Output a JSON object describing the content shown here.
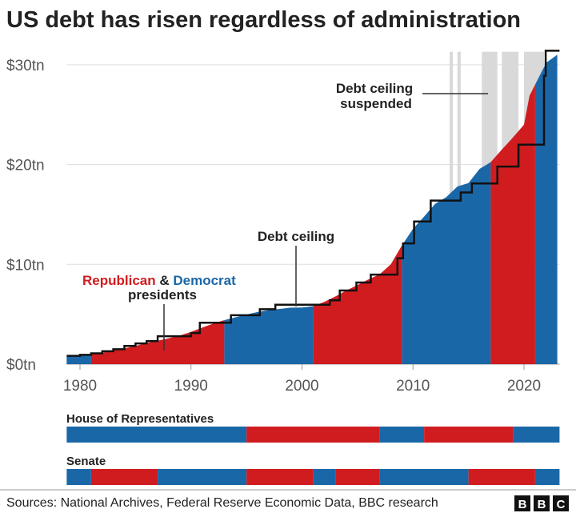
{
  "chart_data": {
    "type": "area",
    "title": "US debt has risen regardless of administration",
    "y_ticks": [
      "$0tn",
      "$10tn",
      "$20tn",
      "$30tn"
    ],
    "y_tick_values": [
      0,
      10,
      20,
      30
    ],
    "x_ticks": [
      "1980",
      "1990",
      "2000",
      "2010",
      "2020"
    ],
    "x_tick_values": [
      1980,
      1990,
      2000,
      2010,
      2020
    ],
    "xlim": [
      1978.8,
      2023.2
    ],
    "ylim": [
      0,
      31.5
    ],
    "grid": true,
    "colors": {
      "republican": "#d01c1f",
      "democrat": "#1a67a8",
      "suspended": "#d9d9d9",
      "ceiling": "#111111"
    },
    "debt_series": {
      "x": [
        1978.8,
        1980,
        1981,
        1982,
        1983,
        1984,
        1985,
        1986,
        1987,
        1988,
        1989,
        1990,
        1991,
        1992,
        1993,
        1994,
        1995,
        1996,
        1997,
        1998,
        1999,
        2000,
        2001,
        2002,
        2003,
        2004,
        2005,
        2006,
        2007,
        2008,
        2009,
        2010,
        2011,
        2012,
        2013,
        2014,
        2015,
        2016,
        2017,
        2018,
        2019,
        2020,
        2020.5,
        2021,
        2022,
        2023
      ],
      "y": [
        0.8,
        0.9,
        1.0,
        1.14,
        1.38,
        1.57,
        1.82,
        2.12,
        2.35,
        2.6,
        2.86,
        3.23,
        3.66,
        4.06,
        4.41,
        4.69,
        4.97,
        5.22,
        5.41,
        5.53,
        5.66,
        5.67,
        5.81,
        6.23,
        6.78,
        7.38,
        7.93,
        8.5,
        9.0,
        10.0,
        11.9,
        13.56,
        14.79,
        16.07,
        16.74,
        17.8,
        18.15,
        19.57,
        20.24,
        21.5,
        22.7,
        24.0,
        26.9,
        28.0,
        30.2,
        31.0
      ]
    },
    "debt_ceiling_steps": {
      "x": [
        1978.8,
        1980,
        1981,
        1982,
        1983,
        1984,
        1985,
        1986,
        1987,
        1990,
        1990.8,
        1993.6,
        1996.2,
        1997.6,
        2002.5,
        2003.4,
        2004.9,
        2006.2,
        2008.6,
        2009.1,
        2010.1,
        2011.6,
        2014.3,
        2015.3,
        2017.6,
        2019.5,
        2021.8,
        2021.95,
        2023.2
      ],
      "y": [
        0.83,
        0.93,
        1.08,
        1.29,
        1.49,
        1.82,
        2.08,
        2.3,
        2.8,
        3.12,
        4.15,
        4.9,
        5.5,
        5.95,
        6.4,
        7.38,
        8.18,
        8.97,
        10.6,
        12.1,
        14.29,
        16.39,
        17.2,
        18.1,
        19.8,
        22.0,
        28.9,
        31.4,
        31.4
      ]
    },
    "presidents": [
      {
        "party": "democrat",
        "from": 1978.8,
        "to": 1981
      },
      {
        "party": "republican",
        "from": 1981,
        "to": 1993
      },
      {
        "party": "democrat",
        "from": 1993,
        "to": 2001
      },
      {
        "party": "republican",
        "from": 2001,
        "to": 2009
      },
      {
        "party": "democrat",
        "from": 2009,
        "to": 2017
      },
      {
        "party": "republican",
        "from": 2017,
        "to": 2021
      },
      {
        "party": "democrat",
        "from": 2021,
        "to": 2023
      }
    ],
    "suspended_periods": [
      [
        2013.3,
        2013.6
      ],
      [
        2014.0,
        2014.3
      ],
      [
        2016.2,
        2017.6
      ],
      [
        2018.0,
        2019.5
      ],
      [
        2020.0,
        2021.8
      ]
    ],
    "house": [
      {
        "party": "democrat",
        "from": 1978.8,
        "to": 1995
      },
      {
        "party": "republican",
        "from": 1995,
        "to": 2007
      },
      {
        "party": "democrat",
        "from": 2007,
        "to": 2011
      },
      {
        "party": "republican",
        "from": 2011,
        "to": 2019
      },
      {
        "party": "democrat",
        "from": 2019,
        "to": 2023.2
      }
    ],
    "senate": [
      {
        "party": "democrat",
        "from": 1978.8,
        "to": 1981
      },
      {
        "party": "republican",
        "from": 1981,
        "to": 1987
      },
      {
        "party": "democrat",
        "from": 1987,
        "to": 1995
      },
      {
        "party": "republican",
        "from": 1995,
        "to": 2001
      },
      {
        "party": "democrat",
        "from": 2001,
        "to": 2003
      },
      {
        "party": "republican",
        "from": 2003,
        "to": 2007
      },
      {
        "party": "democrat",
        "from": 2007,
        "to": 2015
      },
      {
        "party": "republican",
        "from": 2015,
        "to": 2021
      },
      {
        "party": "democrat",
        "from": 2021,
        "to": 2023.2
      }
    ],
    "annotations": {
      "ceiling": "Debt ceiling",
      "suspended_line1": "Debt ceiling",
      "suspended_line2": "suspended",
      "republican": "Republican",
      "amp": " & ",
      "democrat": "Democrat",
      "presidents": "presidents"
    },
    "house_label": "House of Representatives",
    "senate_label": "Senate"
  },
  "footer": {
    "sources": "Sources: National Archives, Federal Reserve Economic Data, BBC research",
    "logo": [
      "B",
      "B",
      "C"
    ]
  }
}
